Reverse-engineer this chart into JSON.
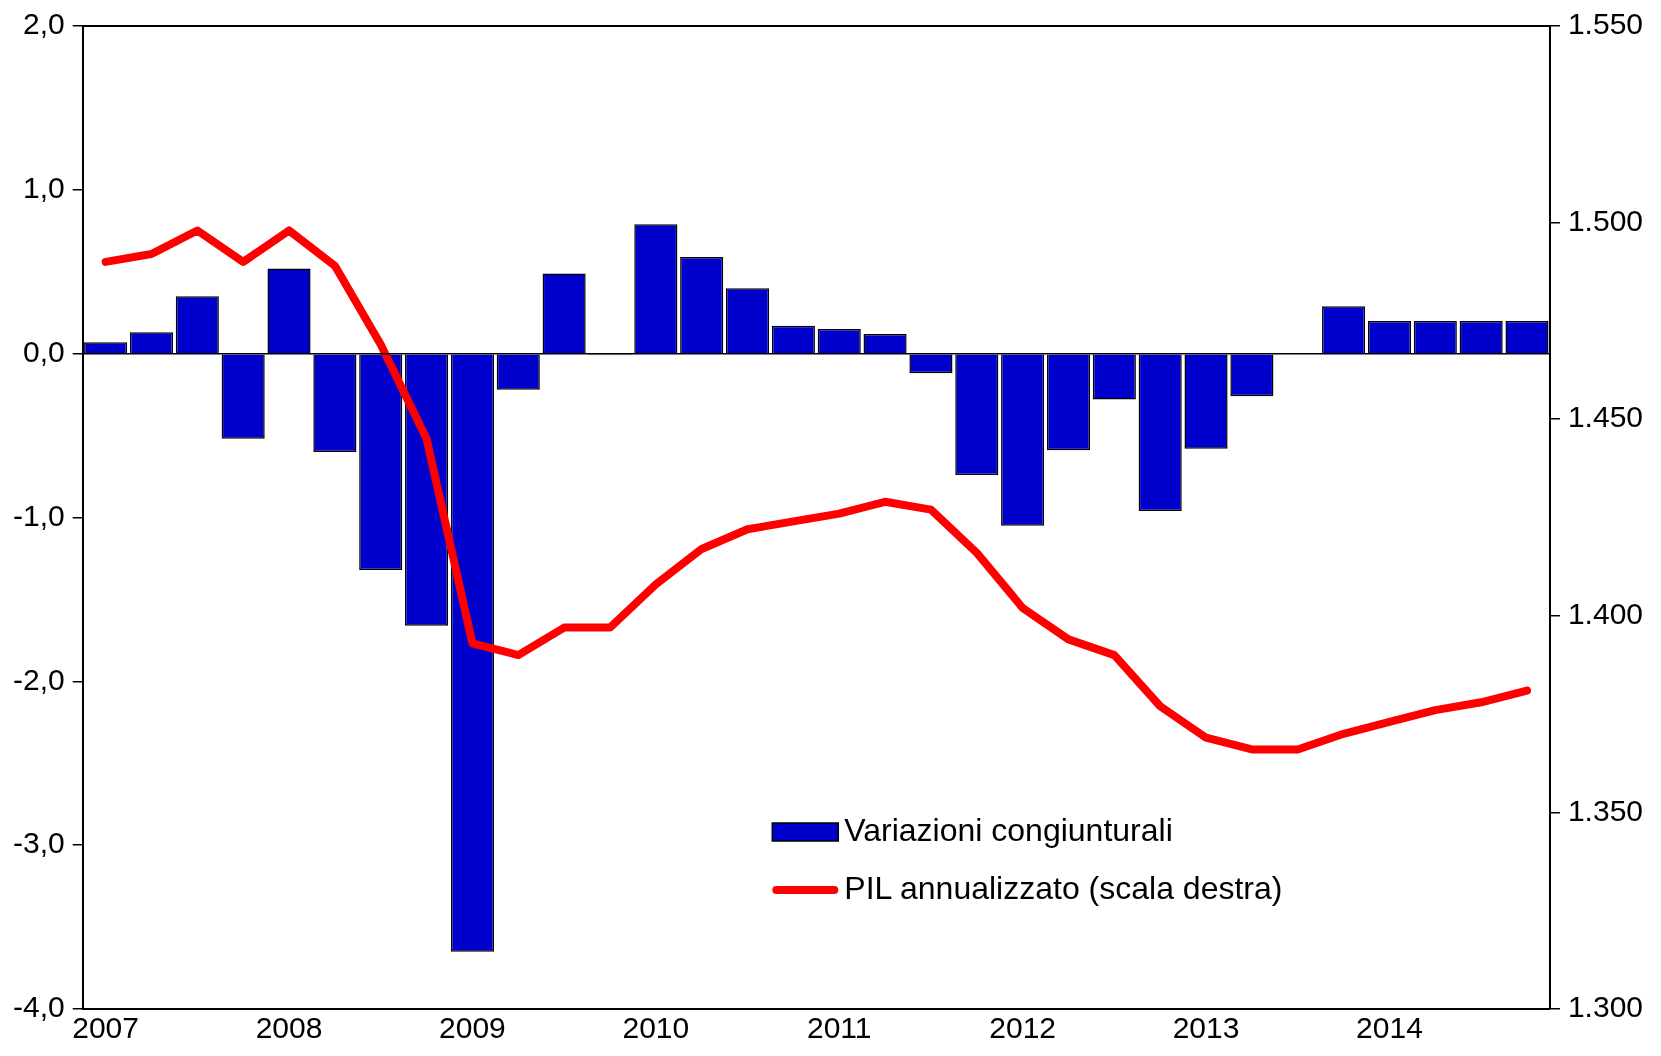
{
  "chart_data": {
    "type": "bar",
    "categories": [
      "2007",
      null,
      null,
      null,
      "2008",
      null,
      null,
      null,
      "2009",
      null,
      null,
      null,
      "2010",
      null,
      null,
      null,
      "2011",
      null,
      null,
      null,
      "2012",
      null,
      null,
      null,
      "2013",
      null,
      null,
      null,
      "2014",
      null,
      null,
      null
    ],
    "series": [
      {
        "name": "Variazioni congiunturali",
        "color": "#0000cc",
        "values": [
          0.07,
          0.13,
          0.35,
          -0.52,
          0.52,
          -0.6,
          -1.32,
          -1.66,
          -3.65,
          -0.22,
          0.49,
          -0.01,
          0.79,
          0.59,
          0.4,
          0.17,
          0.15,
          0.12,
          -0.12,
          -0.74,
          -1.05,
          -0.59,
          -0.28,
          -0.96,
          -0.58,
          -0.26,
          0,
          0.29,
          0.2,
          0.2,
          0.2,
          0.2
        ]
      },
      {
        "name": "PIL annualizzato (scala destra)",
        "type": "line",
        "axis": "y2",
        "color": "#ff0000",
        "values": [
          1490,
          1492,
          1498,
          1490,
          1498,
          1489,
          1469,
          1445,
          1393,
          1390,
          1397,
          1397,
          1408,
          1417,
          1422,
          1424,
          1426,
          1429,
          1427,
          1416,
          1402,
          1394,
          1390,
          1377,
          1369,
          1366,
          1366,
          1370,
          1373,
          1376,
          1378,
          1381
        ]
      }
    ],
    "ylim": [
      -4,
      2
    ],
    "yticks": [
      {
        "value": -4,
        "label": "-4,0"
      },
      {
        "value": -3,
        "label": "-3,0"
      },
      {
        "value": -2,
        "label": "-2,0"
      },
      {
        "value": -1,
        "label": "-1,0"
      },
      {
        "value": 0,
        "label": "0,0"
      },
      {
        "value": 1,
        "label": "1,0"
      },
      {
        "value": 2,
        "label": "2,0"
      }
    ],
    "y2lim": [
      1300,
      1550
    ],
    "y2ticks": [
      {
        "value": 1300,
        "label": "1.300"
      },
      {
        "value": 1350,
        "label": "1.350"
      },
      {
        "value": 1400,
        "label": "1.400"
      },
      {
        "value": 1450,
        "label": "1.450"
      },
      {
        "value": 1500,
        "label": "1.500"
      },
      {
        "value": 1550,
        "label": "1.550"
      }
    ],
    "ref_lines": [
      {
        "axis": "y",
        "value": 0,
        "color": "#000000",
        "line_style": "solid"
      }
    ],
    "grid": false,
    "legend": "bottom",
    "marker": "none",
    "line_style": "solid"
  }
}
